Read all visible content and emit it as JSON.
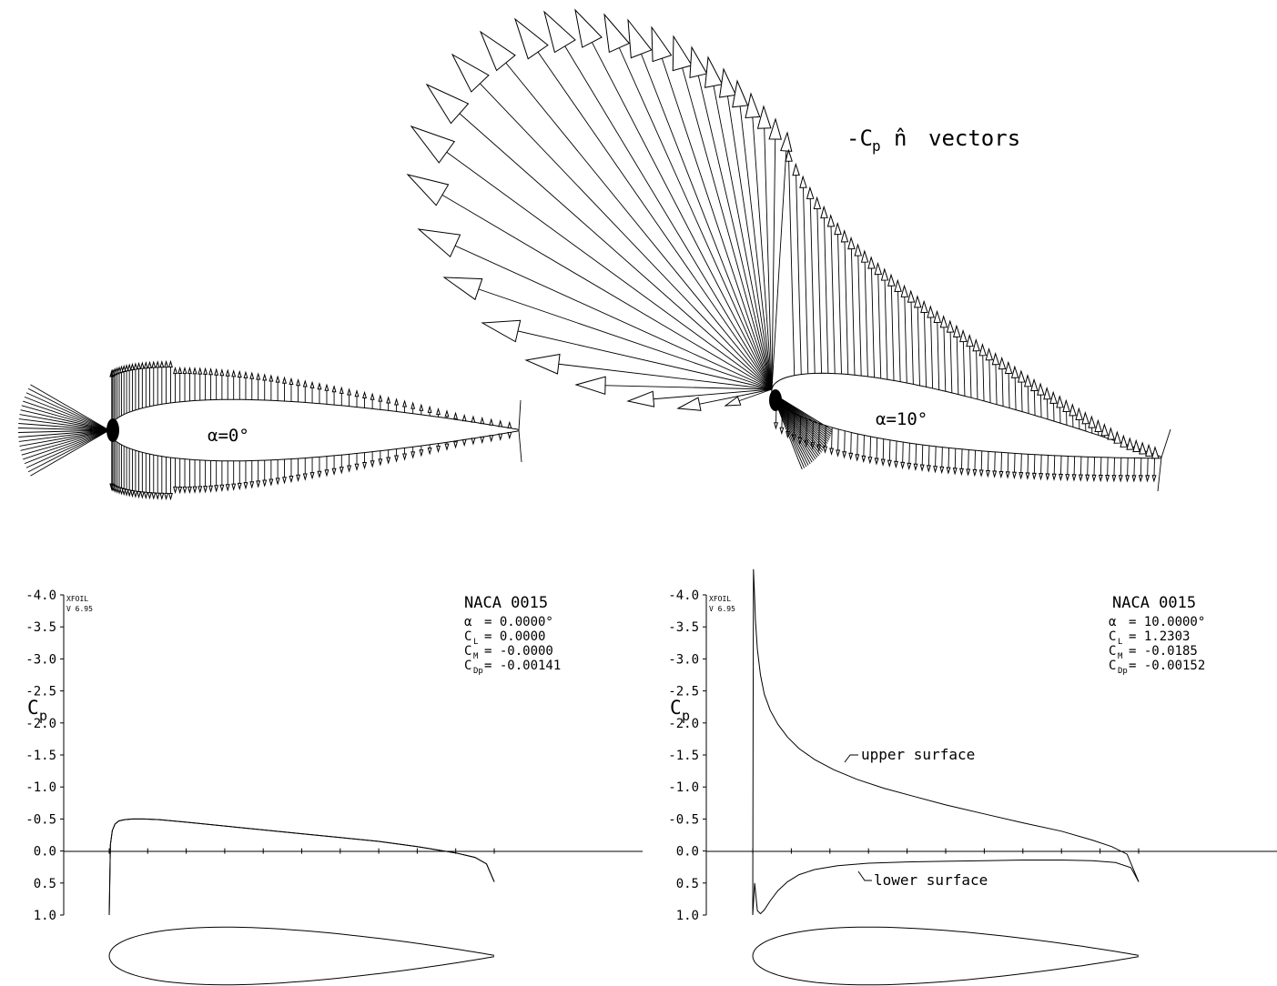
{
  "colors": {
    "ink": "#000000",
    "background": "#ffffff"
  },
  "vector_plot": {
    "title": "-Cp n̂ vectors",
    "title_main": "-C",
    "title_sub": "p",
    "title_n": "n̂",
    "title_tail": "vectors",
    "left_label": "α=0°",
    "right_label": "α=10°"
  },
  "chart_data": [
    {
      "type": "line",
      "panel": "left",
      "xfoil_mark": "XFOIL",
      "version": "V 6.95",
      "airfoil": "NACA 0015",
      "ylabel_main": "C",
      "ylabel_sub": "p",
      "yticks": [
        "-4.0",
        "-3.5",
        "-3.0",
        "-2.5",
        "-2.0",
        "-1.5",
        "-1.0",
        "-0.5",
        "0.0",
        "0.5",
        "1.0"
      ],
      "ylim": [
        -4.0,
        1.0
      ],
      "y_inverted": true,
      "xlim": [
        0,
        1
      ],
      "x_tick_count": 11,
      "coefficients": [
        {
          "sym": "α",
          "sub": "",
          "value": "= 0.0000°"
        },
        {
          "sym": "C",
          "sub": "L",
          "value": "= 0.0000"
        },
        {
          "sym": "C",
          "sub": "M",
          "value": "= -0.0000"
        },
        {
          "sym": "C",
          "sub": "Dp",
          "value": "= -0.00141"
        }
      ],
      "series": [
        {
          "x": [
            0,
            0.003,
            0.008,
            0.015,
            0.025,
            0.04,
            0.06,
            0.09,
            0.13,
            0.2,
            0.3,
            0.4,
            0.5,
            0.6,
            0.7,
            0.8,
            0.85,
            0.9,
            0.95,
            0.98,
            1.0
          ],
          "y": [
            1.0,
            -0.1,
            -0.32,
            -0.42,
            -0.47,
            -0.49,
            -0.5,
            -0.5,
            -0.49,
            -0.45,
            -0.39,
            -0.33,
            -0.27,
            -0.21,
            -0.15,
            -0.07,
            -0.02,
            0.03,
            0.1,
            0.2,
            0.48
          ]
        },
        {
          "x": [
            0,
            0.003,
            0.008,
            0.015,
            0.025,
            0.04,
            0.06,
            0.09,
            0.13,
            0.2,
            0.3,
            0.4,
            0.5,
            0.6,
            0.7,
            0.8,
            0.85,
            0.9,
            0.95,
            0.98,
            1.0
          ],
          "y": [
            1.0,
            -0.1,
            -0.32,
            -0.42,
            -0.47,
            -0.49,
            -0.5,
            -0.5,
            -0.49,
            -0.45,
            -0.39,
            -0.33,
            -0.27,
            -0.21,
            -0.15,
            -0.07,
            -0.02,
            0.03,
            0.1,
            0.2,
            0.48
          ]
        }
      ]
    },
    {
      "type": "line",
      "panel": "right",
      "xfoil_mark": "XFOIL",
      "version": "V 6.95",
      "airfoil": "NACA 0015",
      "ylabel_main": "C",
      "ylabel_sub": "p",
      "yticks": [
        "-4.0",
        "-3.5",
        "-3.0",
        "-2.5",
        "-2.0",
        "-1.5",
        "-1.0",
        "-0.5",
        "0.0",
        "0.5",
        "1.0"
      ],
      "ylim": [
        -4.0,
        1.0
      ],
      "y_inverted": true,
      "xlim": [
        0,
        1
      ],
      "x_tick_count": 11,
      "coefficients": [
        {
          "sym": "α",
          "sub": "",
          "value": "= 10.0000°"
        },
        {
          "sym": "C",
          "sub": "L",
          "value": "= 1.2303"
        },
        {
          "sym": "C",
          "sub": "M",
          "value": "= -0.0185"
        },
        {
          "sym": "C",
          "sub": "Dp",
          "value": "= -0.00152"
        }
      ],
      "annotations": [
        "upper surface",
        "lower surface"
      ],
      "series": [
        {
          "name": "upper surface",
          "x": [
            0,
            0.001,
            0.002,
            0.004,
            0.007,
            0.012,
            0.02,
            0.03,
            0.045,
            0.065,
            0.09,
            0.12,
            0.16,
            0.21,
            0.27,
            0.34,
            0.42,
            0.5,
            0.6,
            0.7,
            0.8,
            0.88,
            0.93,
            0.97,
            1.0
          ],
          "y": [
            1.0,
            -2.0,
            -4.4,
            -4.1,
            -3.6,
            -3.15,
            -2.75,
            -2.45,
            -2.2,
            -1.98,
            -1.78,
            -1.6,
            -1.43,
            -1.27,
            -1.12,
            -0.98,
            -0.85,
            -0.72,
            -0.58,
            -0.44,
            -0.31,
            -0.17,
            -0.07,
            0.05,
            0.48
          ]
        },
        {
          "name": "lower surface",
          "x": [
            0,
            0.005,
            0.012,
            0.02,
            0.03,
            0.045,
            0.065,
            0.09,
            0.12,
            0.16,
            0.22,
            0.3,
            0.4,
            0.5,
            0.6,
            0.7,
            0.8,
            0.88,
            0.94,
            0.98,
            1.0
          ],
          "y": [
            1.0,
            0.5,
            0.93,
            0.98,
            0.92,
            0.78,
            0.62,
            0.48,
            0.37,
            0.29,
            0.23,
            0.19,
            0.17,
            0.16,
            0.15,
            0.14,
            0.14,
            0.15,
            0.18,
            0.26,
            0.48
          ]
        }
      ]
    }
  ]
}
